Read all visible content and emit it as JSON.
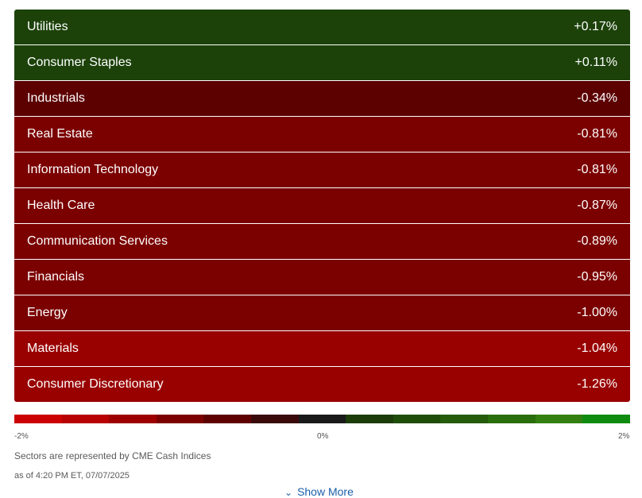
{
  "sectors": [
    {
      "name": "Utilities",
      "change": "+0.17%",
      "color": "#1c420a"
    },
    {
      "name": "Consumer Staples",
      "change": "+0.11%",
      "color": "#1c420a"
    },
    {
      "name": "Industrials",
      "change": "-0.34%",
      "color": "#5c0000"
    },
    {
      "name": "Real Estate",
      "change": "-0.81%",
      "color": "#7b0000"
    },
    {
      "name": "Information Technology",
      "change": "-0.81%",
      "color": "#7b0000"
    },
    {
      "name": "Health Care",
      "change": "-0.87%",
      "color": "#7b0000"
    },
    {
      "name": "Communication Services",
      "change": "-0.89%",
      "color": "#7b0000"
    },
    {
      "name": "Financials",
      "change": "-0.95%",
      "color": "#7b0000"
    },
    {
      "name": "Energy",
      "change": "-1.00%",
      "color": "#7b0000"
    },
    {
      "name": "Materials",
      "change": "-1.04%",
      "color": "#990000"
    },
    {
      "name": "Consumer Discretionary",
      "change": "-1.26%",
      "color": "#990000"
    }
  ],
  "legend": {
    "min_label": "-2%",
    "mid_label": "0%",
    "max_label": "2%",
    "colors": [
      "#cc0000",
      "#b80000",
      "#9e0000",
      "#7d0000",
      "#5e0000",
      "#3a0a0a",
      "#1a1a1a",
      "#1c3d0a",
      "#1f4d0a",
      "#245c0b",
      "#2a6d0c",
      "#338010",
      "#0f8c0f"
    ]
  },
  "source_note": "Sectors are represented by CME Cash Indices",
  "timestamp": "as of 4:20 PM ET, 07/07/2025",
  "show_more": {
    "label": "Show More",
    "icon": "chevron-down-icon"
  }
}
